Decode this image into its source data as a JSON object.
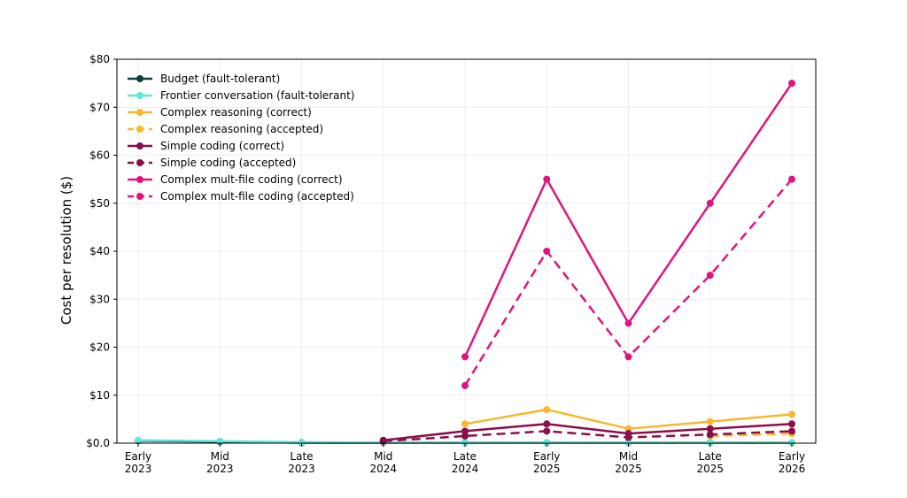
{
  "chart_data": {
    "type": "line",
    "title": "",
    "xlabel": "",
    "ylabel": "Cost per resolution ($)",
    "x": [
      [
        "Early",
        "2023"
      ],
      [
        "Mid",
        "2023"
      ],
      [
        "Late",
        "2023"
      ],
      [
        "Mid",
        "2024"
      ],
      [
        "Late",
        "2024"
      ],
      [
        "Early",
        "2025"
      ],
      [
        "Mid",
        "2025"
      ],
      [
        "Late",
        "2025"
      ],
      [
        "Early",
        "2026"
      ]
    ],
    "ylim": [
      0,
      80
    ],
    "yticks": [
      0,
      10,
      20,
      30,
      40,
      50,
      60,
      70,
      80
    ],
    "ytick_labels": [
      "$0.0",
      "$10",
      "$20",
      "$30",
      "$40",
      "$50",
      "$60",
      "$70",
      "$80"
    ],
    "grid": true,
    "legend_position": "top-left",
    "series": [
      {
        "name": "Budget (fault-tolerant)",
        "color": "#0f3f3f",
        "dash": "solid",
        "values": [
          0.5,
          0.3,
          0.1,
          0.1,
          0.1,
          0.1,
          0.1,
          0.1,
          0.1
        ]
      },
      {
        "name": "Frontier conversation (fault-tolerant)",
        "color": "#5ee6d6",
        "dash": "solid",
        "values": [
          0.6,
          0.4,
          0.2,
          0.1,
          0.1,
          0.1,
          0.1,
          0.1,
          0.1
        ]
      },
      {
        "name": "Complex reasoning (correct)",
        "color": "#f5b82e",
        "dash": "solid",
        "values": [
          null,
          null,
          null,
          null,
          4,
          7,
          3,
          4.5,
          6
        ]
      },
      {
        "name": "Complex reasoning (accepted)",
        "color": "#f5b82e",
        "dash": "dashed",
        "values": [
          null,
          null,
          null,
          null,
          null,
          null,
          null,
          1.5,
          2
        ]
      },
      {
        "name": "Simple coding (correct)",
        "color": "#8a0e4a",
        "dash": "solid",
        "values": [
          null,
          null,
          null,
          0.6,
          2.5,
          4,
          2,
          3,
          4
        ]
      },
      {
        "name": "Simple coding (accepted)",
        "color": "#8a0e4a",
        "dash": "dashed",
        "values": [
          null,
          null,
          null,
          0.4,
          1.5,
          2.5,
          1.2,
          1.8,
          2.5
        ]
      },
      {
        "name": "Complex mult-file coding (correct)",
        "color": "#e0147f",
        "dash": "solid",
        "values": [
          null,
          null,
          null,
          null,
          18,
          55,
          25,
          50,
          75
        ]
      },
      {
        "name": "Complex mult-file coding (accepted)",
        "color": "#e0147f",
        "dash": "dashed",
        "values": [
          null,
          null,
          null,
          null,
          12,
          40,
          18,
          35,
          55
        ]
      }
    ]
  }
}
